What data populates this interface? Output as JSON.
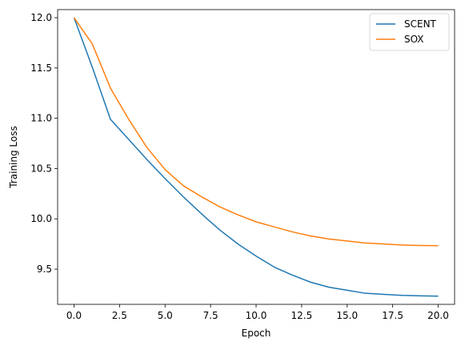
{
  "chart_data": {
    "type": "line",
    "title": "",
    "xlabel": "Epoch",
    "ylabel": "Training Loss",
    "xlim": [
      -0.9,
      20.9
    ],
    "ylim": [
      9.15,
      12.08
    ],
    "xticks": [
      0.0,
      2.5,
      5.0,
      7.5,
      10.0,
      12.5,
      15.0,
      17.5,
      20.0
    ],
    "xtick_labels": [
      "0.0",
      "2.5",
      "5.0",
      "7.5",
      "10.0",
      "12.5",
      "15.0",
      "17.5",
      "20.0"
    ],
    "yticks": [
      9.5,
      10.0,
      10.5,
      11.0,
      11.5,
      12.0
    ],
    "ytick_labels": [
      "9.5",
      "10.0",
      "10.5",
      "11.0",
      "11.5",
      "12.0"
    ],
    "grid": false,
    "legend": "top-right",
    "x": [
      0,
      1,
      2,
      3,
      4,
      5,
      6,
      7,
      8,
      9,
      10,
      11,
      12,
      13,
      14,
      15,
      16,
      17,
      18,
      19,
      20
    ],
    "series": [
      {
        "name": "SCENT",
        "color": "#1f77b4",
        "values": [
          12.0,
          11.51,
          10.99,
          10.79,
          10.59,
          10.4,
          10.22,
          10.05,
          9.89,
          9.75,
          9.63,
          9.52,
          9.44,
          9.37,
          9.32,
          9.29,
          9.26,
          9.25,
          9.24,
          9.235,
          9.232
        ]
      },
      {
        "name": "SOX",
        "color": "#ff7f0e",
        "values": [
          12.0,
          11.74,
          11.3,
          10.99,
          10.71,
          10.49,
          10.33,
          10.22,
          10.12,
          10.04,
          9.97,
          9.92,
          9.87,
          9.83,
          9.8,
          9.78,
          9.76,
          9.75,
          9.74,
          9.735,
          9.733
        ]
      }
    ]
  }
}
